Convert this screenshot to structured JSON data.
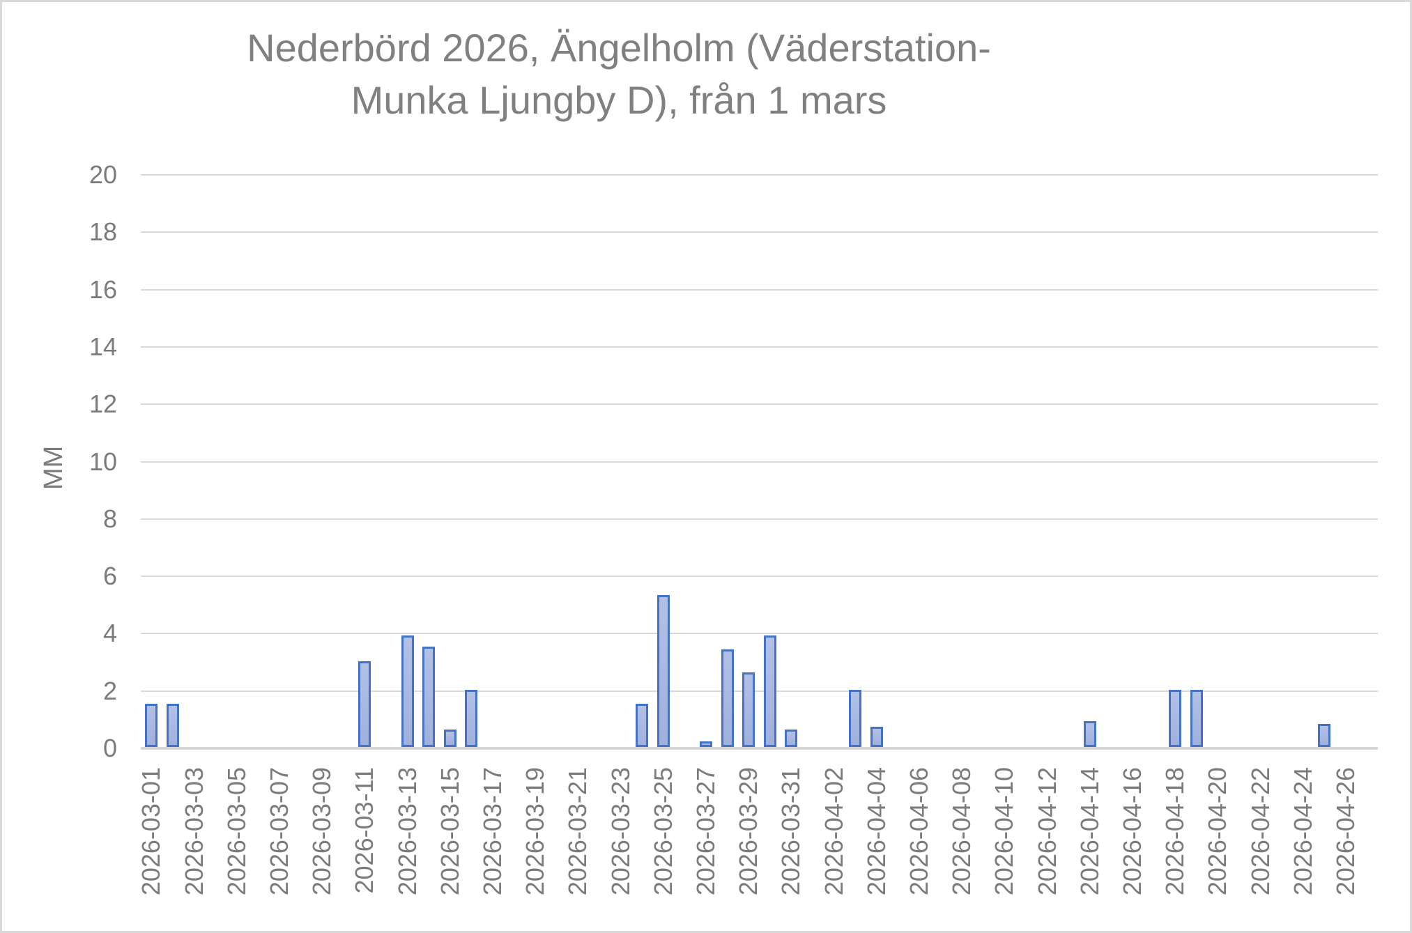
{
  "chart_data": {
    "type": "bar",
    "title": "Nederbörd 2026, Ängelholm (Väderstation-Munka Ljungby D), från 1 mars",
    "title_lines": [
      "Nederbörd 2026, Ängelholm (Väderstation-",
      "Munka Ljungby D), från 1 mars"
    ],
    "xlabel": "",
    "ylabel": "MM",
    "ylim": [
      0,
      20
    ],
    "ytick_step": 2,
    "yticks": [
      0,
      2,
      4,
      6,
      8,
      10,
      12,
      14,
      16,
      18,
      20
    ],
    "grid": true,
    "legend": null,
    "x_label_every_n_days": 2,
    "categories": [
      "2026-03-01",
      "2026-03-02",
      "2026-03-03",
      "2026-03-04",
      "2026-03-05",
      "2026-03-06",
      "2026-03-07",
      "2026-03-08",
      "2026-03-09",
      "2026-03-10",
      "2026-03-11",
      "2026-03-12",
      "2026-03-13",
      "2026-03-14",
      "2026-03-15",
      "2026-03-16",
      "2026-03-17",
      "2026-03-18",
      "2026-03-19",
      "2026-03-20",
      "2026-03-21",
      "2026-03-22",
      "2026-03-23",
      "2026-03-24",
      "2026-03-25",
      "2026-03-26",
      "2026-03-27",
      "2026-03-28",
      "2026-03-29",
      "2026-03-30",
      "2026-03-31",
      "2026-04-01",
      "2026-04-02",
      "2026-04-03",
      "2026-04-04",
      "2026-04-05",
      "2026-04-06",
      "2026-04-07",
      "2026-04-08",
      "2026-04-09",
      "2026-04-10",
      "2026-04-11",
      "2026-04-12",
      "2026-04-13",
      "2026-04-14",
      "2026-04-15",
      "2026-04-16",
      "2026-04-17",
      "2026-04-18",
      "2026-04-19",
      "2026-04-20",
      "2026-04-21",
      "2026-04-22",
      "2026-04-23",
      "2026-04-24",
      "2026-04-25",
      "2026-04-26",
      "2026-04-27"
    ],
    "values": [
      1.5,
      1.5,
      0,
      0,
      0,
      0,
      0,
      0,
      0,
      0,
      3.0,
      0,
      3.9,
      3.5,
      0.6,
      2.0,
      0,
      0,
      0,
      0,
      0,
      0,
      0,
      1.5,
      5.3,
      0,
      0.2,
      3.4,
      2.6,
      3.9,
      0.6,
      0,
      0,
      2.0,
      0.7,
      0,
      0,
      0,
      0,
      0,
      0,
      0,
      0,
      0,
      0.9,
      0,
      0,
      0,
      2.0,
      2.0,
      0,
      0,
      0,
      0,
      0,
      0.8,
      0,
      0
    ],
    "colors": {
      "bar_fill": "#a9b8e0",
      "bar_fill_top": "#b3c0e7",
      "bar_fill_bottom": "#9fb1dc",
      "bar_border": "#4472c4",
      "gridline": "#d9d9d9",
      "axis_line": "#d6d6d6",
      "text": "#7b7b7b",
      "title_text": "#808080"
    }
  }
}
